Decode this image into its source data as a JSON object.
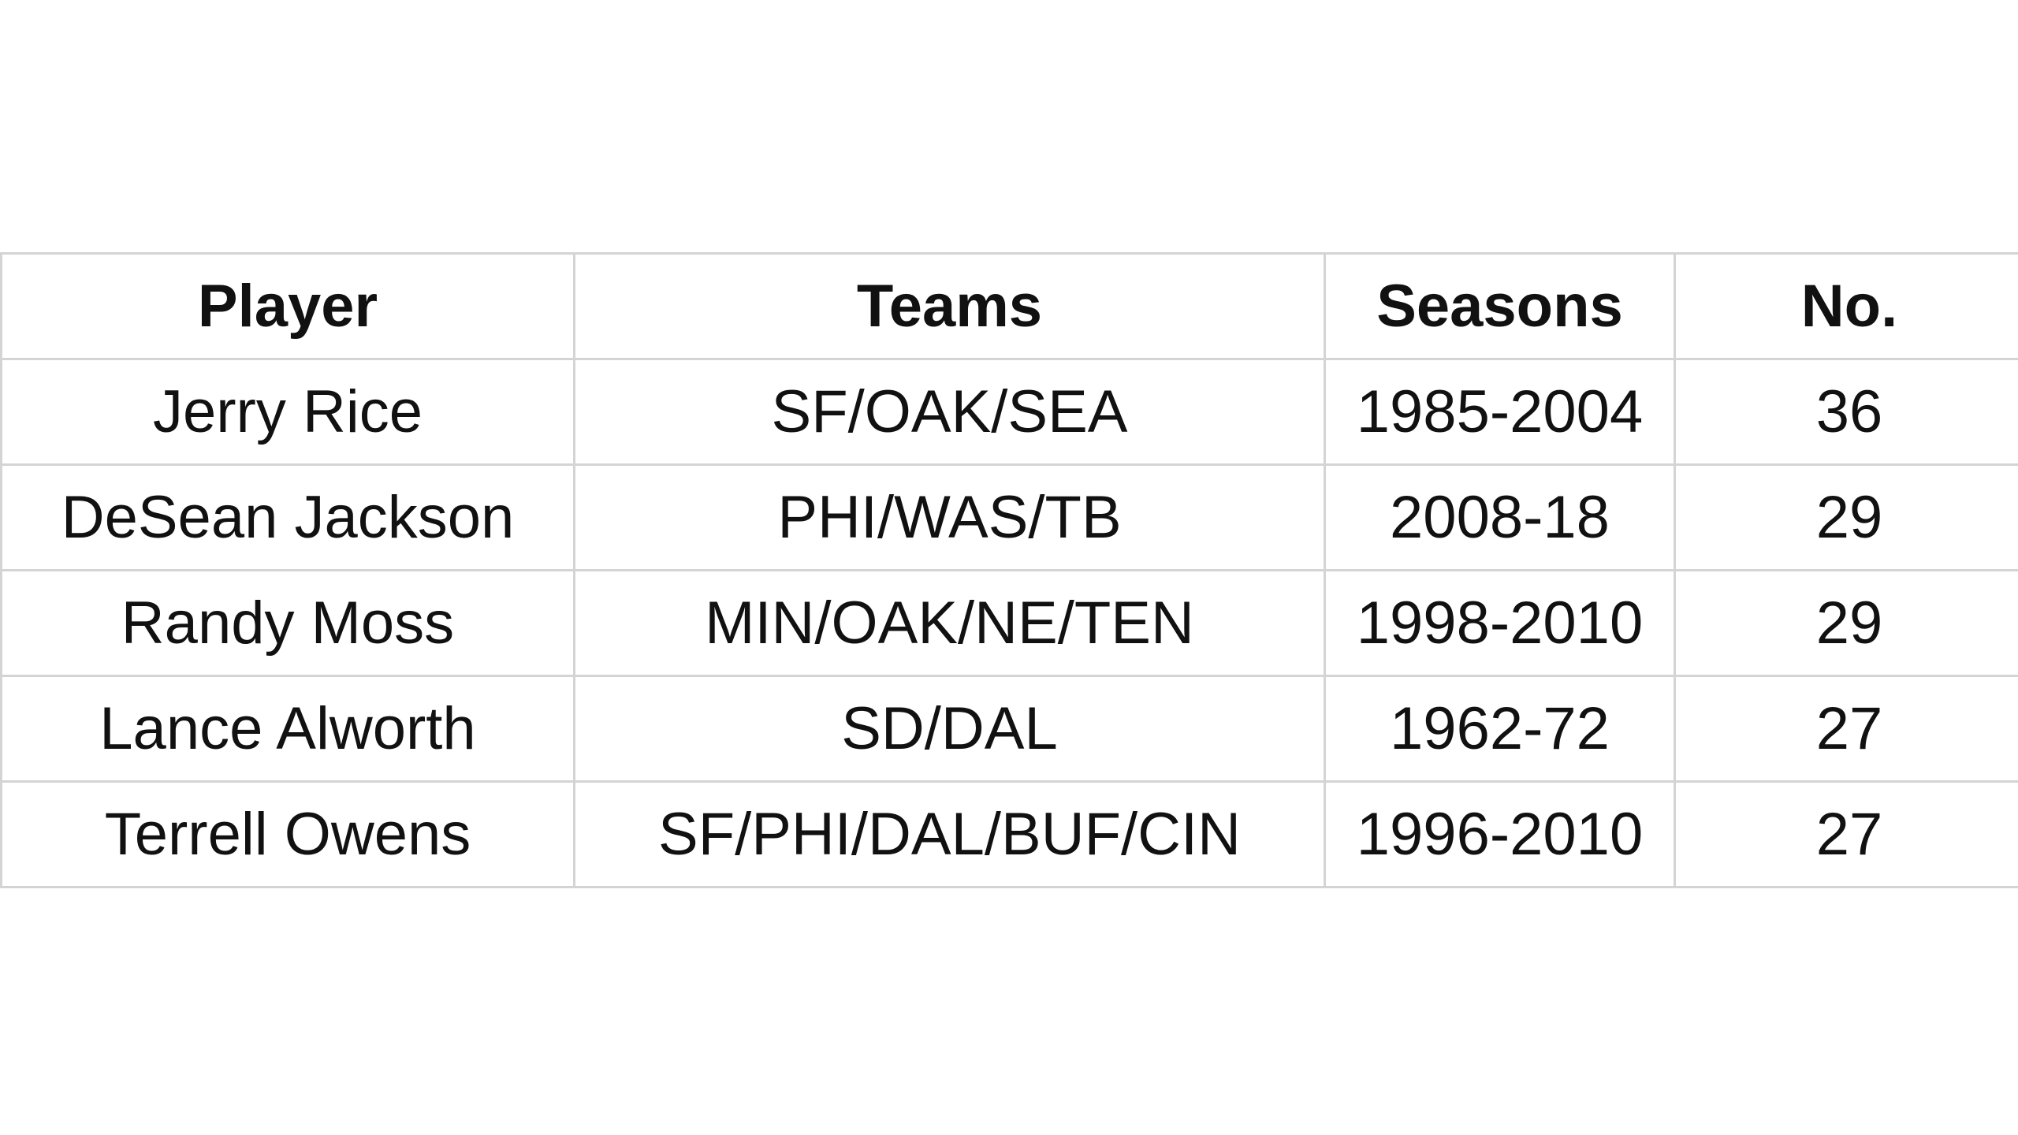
{
  "table": {
    "header": [
      "Player",
      "Teams",
      "Seasons",
      "No."
    ],
    "rows": [
      [
        "Jerry Rice",
        "SF/OAK/SEA",
        "1985-2004",
        "36"
      ],
      [
        "DeSean Jackson",
        "PHI/WAS/TB",
        "2008-18",
        "29"
      ],
      [
        "Randy Moss",
        "MIN/OAK/NE/TEN",
        "1998-2010",
        "29"
      ],
      [
        "Lance Alworth",
        "SD/DAL",
        "1962-72",
        "27"
      ],
      [
        "Terrell Owens",
        "SF/PHI/DAL/BUF/CIN",
        "1996-2010",
        "27"
      ]
    ]
  }
}
